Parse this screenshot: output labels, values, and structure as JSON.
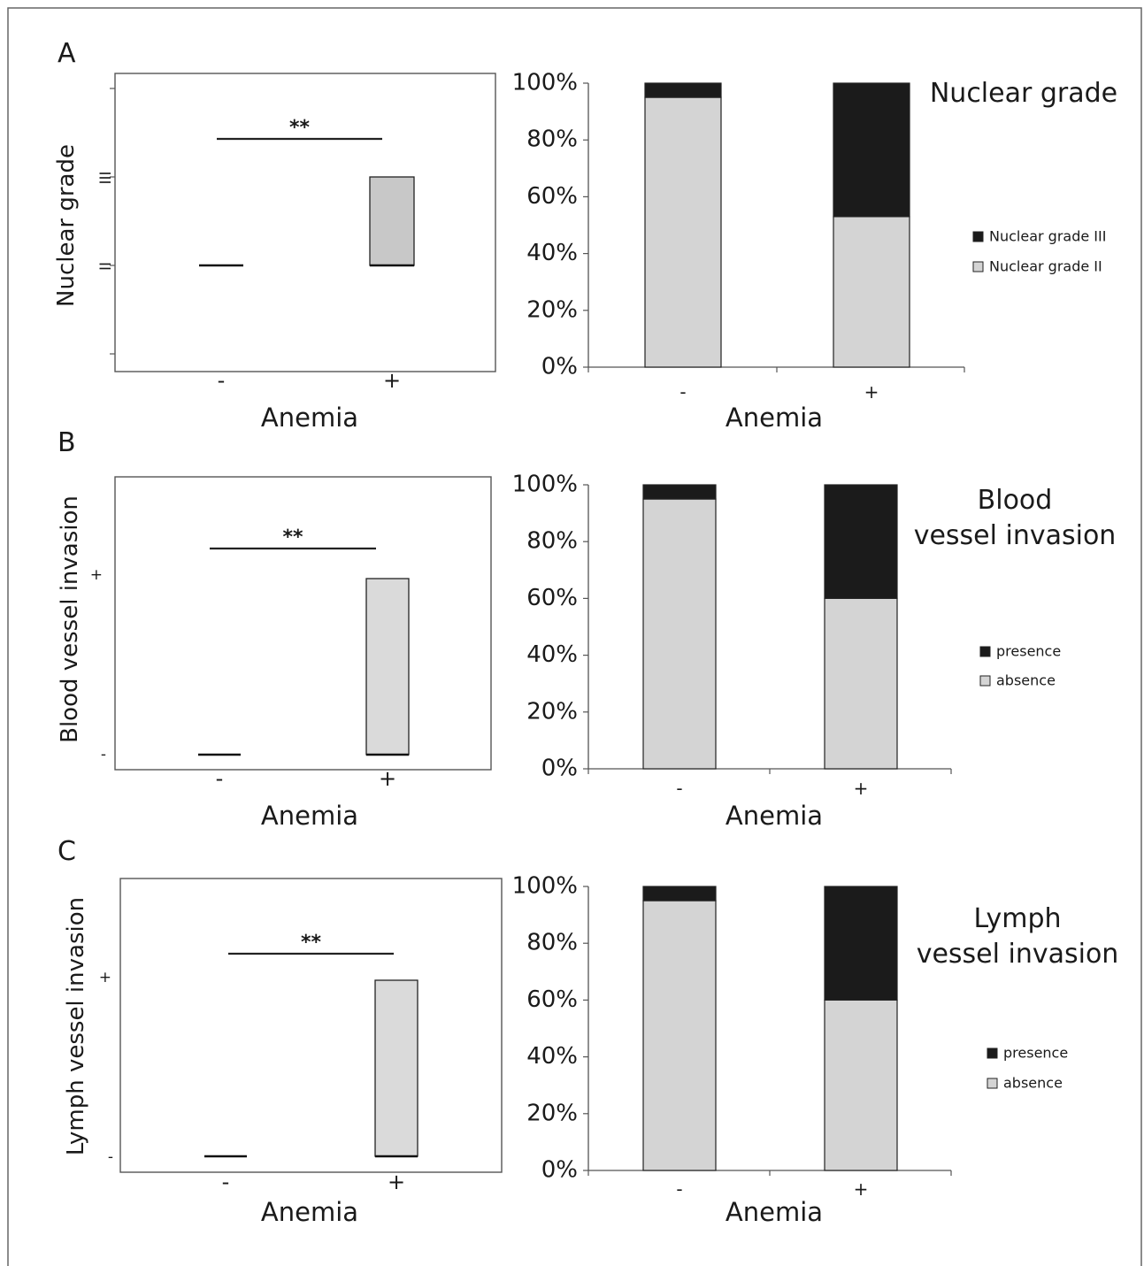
{
  "colors": {
    "dark": "#1b1b1b",
    "light": "#d4d4d4",
    "box_a": "#c8c8c8",
    "box_bc": "#dadada",
    "frame": "#555555"
  },
  "chart_data": [
    {
      "panel": "A",
      "type": "box",
      "ylabel": "Nuclear grade",
      "xlabel": "Anemia",
      "categories": [
        "-",
        "+"
      ],
      "y_ticks": [
        "II",
        "III"
      ],
      "ylim": [
        1,
        4
      ],
      "boxes": [
        {
          "category": "-",
          "low": 2,
          "high": 2
        },
        {
          "category": "+",
          "low": 2,
          "high": 3
        }
      ],
      "significance": "**"
    },
    {
      "panel": "A",
      "type": "bar",
      "title": "Nuclear grade",
      "xlabel": "Anemia",
      "categories": [
        "-",
        "+"
      ],
      "y_ticks": [
        "0%",
        "20%",
        "40%",
        "60%",
        "80%",
        "100%"
      ],
      "ylim": [
        0,
        100
      ],
      "stacked": true,
      "series": [
        {
          "name": "Nuclear grade II",
          "values": [
            95,
            53
          ]
        },
        {
          "name": "Nuclear grade III",
          "values": [
            5,
            47
          ]
        }
      ],
      "legend_order": [
        "Nuclear grade III",
        "Nuclear grade II"
      ],
      "legend": "right"
    },
    {
      "panel": "B",
      "type": "box",
      "ylabel": "Blood vessel invasion",
      "xlabel": "Anemia",
      "categories": [
        "-",
        "+"
      ],
      "y_ticks": [
        "-",
        "+"
      ],
      "ylim": [
        0,
        1
      ],
      "boxes": [
        {
          "category": "-",
          "low": 0,
          "high": 0
        },
        {
          "category": "+",
          "low": 0,
          "high": 1
        }
      ],
      "significance": "**"
    },
    {
      "panel": "B",
      "type": "bar",
      "title": "Blood vessel invasion",
      "title_lines": [
        "Blood",
        "vessel invasion"
      ],
      "xlabel": "Anemia",
      "categories": [
        "-",
        "+"
      ],
      "y_ticks": [
        "0%",
        "20%",
        "40%",
        "60%",
        "80%",
        "100%"
      ],
      "ylim": [
        0,
        100
      ],
      "stacked": true,
      "series": [
        {
          "name": "absence",
          "values": [
            95,
            60
          ]
        },
        {
          "name": "presence",
          "values": [
            5,
            40
          ]
        }
      ],
      "legend_order": [
        "presence",
        "absence"
      ],
      "legend": "right"
    },
    {
      "panel": "C",
      "type": "box",
      "ylabel": "Lymph vessel invasion",
      "xlabel": "Anemia",
      "categories": [
        "-",
        "+"
      ],
      "y_ticks": [
        "-",
        "+"
      ],
      "ylim": [
        0,
        1
      ],
      "boxes": [
        {
          "category": "-",
          "low": 0,
          "high": 0
        },
        {
          "category": "+",
          "low": 0,
          "high": 1
        }
      ],
      "significance": "**"
    },
    {
      "panel": "C",
      "type": "bar",
      "title": "Lymph vessel invasion",
      "title_lines": [
        "Lymph",
        "vessel invasion"
      ],
      "xlabel": "Anemia",
      "categories": [
        "-",
        "+"
      ],
      "y_ticks": [
        "0%",
        "20%",
        "40%",
        "60%",
        "80%",
        "100%"
      ],
      "ylim": [
        0,
        100
      ],
      "stacked": true,
      "series": [
        {
          "name": "absence",
          "values": [
            95,
            60
          ]
        },
        {
          "name": "presence",
          "values": [
            5,
            40
          ]
        }
      ],
      "legend_order": [
        "presence",
        "absence"
      ],
      "legend": "right"
    }
  ]
}
